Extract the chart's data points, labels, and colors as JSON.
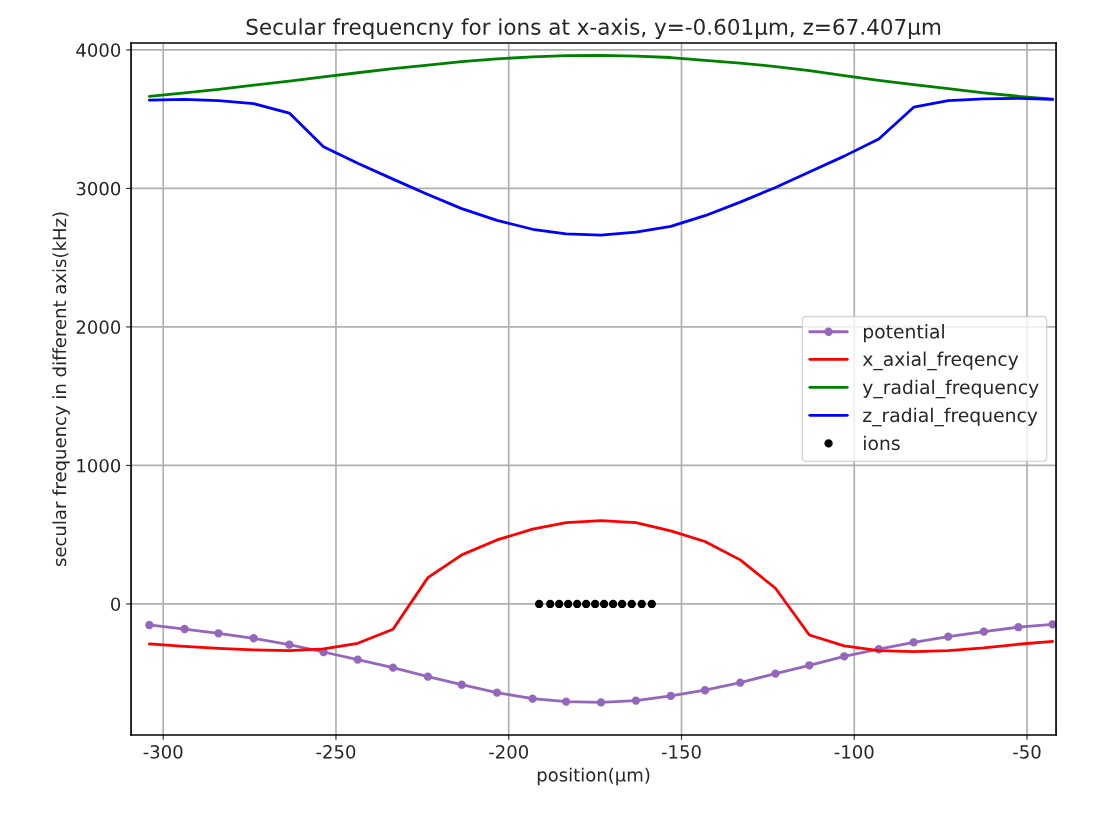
{
  "chart_data": {
    "type": "line",
    "title": "Secular frequencny for ions at x-axis, y=-0.601μm, z=67.407μm",
    "xlabel": "position(μm)",
    "ylabel": "secular frequency in different axis(kHz)",
    "x": [
      -304.0,
      -293.8,
      -284.0,
      -273.8,
      -263.5,
      -253.6,
      -243.7,
      -233.5,
      -223.4,
      -213.6,
      -203.4,
      -193.1,
      -183.4,
      -173.3,
      -163.2,
      -153.1,
      -143.2,
      -133.0,
      -122.8,
      -113.0,
      -102.9,
      -92.9,
      -82.8,
      -72.8,
      -62.5,
      -52.5,
      -42.6
    ],
    "series": [
      {
        "name": "potential",
        "color": "#9467bd",
        "marker": "circle",
        "values": [
          -152,
          -181,
          -212,
          -248,
          -294,
          -347,
          -402,
          -460,
          -525,
          -583,
          -640,
          -684,
          -705,
          -711,
          -698,
          -664,
          -623,
          -568,
          -503,
          -443,
          -378,
          -327,
          -277,
          -236,
          -200,
          -168,
          -147
        ]
      },
      {
        "name": "x_axial_freqency",
        "color": "#ff0000",
        "values": [
          -289,
          -307,
          -321,
          -332,
          -337,
          -325,
          -284,
          -183,
          190,
          354,
          462,
          540,
          587,
          601,
          587,
          528,
          451,
          318,
          113,
          -224,
          -303,
          -337,
          -344,
          -337,
          -318,
          -291,
          -271
        ]
      },
      {
        "name": "y_radial_frequency",
        "color": "#008000",
        "values": [
          3665,
          3690,
          3715,
          3745,
          3775,
          3805,
          3835,
          3865,
          3890,
          3915,
          3935,
          3950,
          3958,
          3960,
          3955,
          3945,
          3925,
          3905,
          3880,
          3850,
          3815,
          3780,
          3750,
          3720,
          3690,
          3665,
          3645
        ]
      },
      {
        "name": "z_radial_frequency",
        "color": "#0000ff",
        "values": [
          3638,
          3642,
          3633,
          3612,
          3544,
          3301,
          3182,
          3067,
          2956,
          2854,
          2769,
          2705,
          2671,
          2662,
          2684,
          2726,
          2803,
          2901,
          3007,
          3118,
          3233,
          3357,
          3586,
          3633,
          3646,
          3650,
          3642
        ]
      },
      {
        "name": "ions",
        "type": "scatter",
        "color": "#000000",
        "marker": "circle",
        "x": [
          -191.2,
          -188.0,
          -185.4,
          -182.8,
          -180.2,
          -177.6,
          -175.0,
          -172.4,
          -169.8,
          -167.2,
          -164.4,
          -161.5,
          -158.6
        ],
        "values": [
          0,
          0,
          0,
          0,
          0,
          0,
          0,
          0,
          0,
          0,
          0,
          0,
          0
        ]
      }
    ],
    "xlim": [
      -309.3,
      -41.6
    ],
    "ylim": [
      -946,
      4050
    ],
    "xticks": [
      -300,
      -250,
      -200,
      -150,
      -100,
      -50
    ],
    "yticks": [
      0,
      1000,
      2000,
      3000,
      4000
    ],
    "grid": true,
    "legend": "right"
  }
}
